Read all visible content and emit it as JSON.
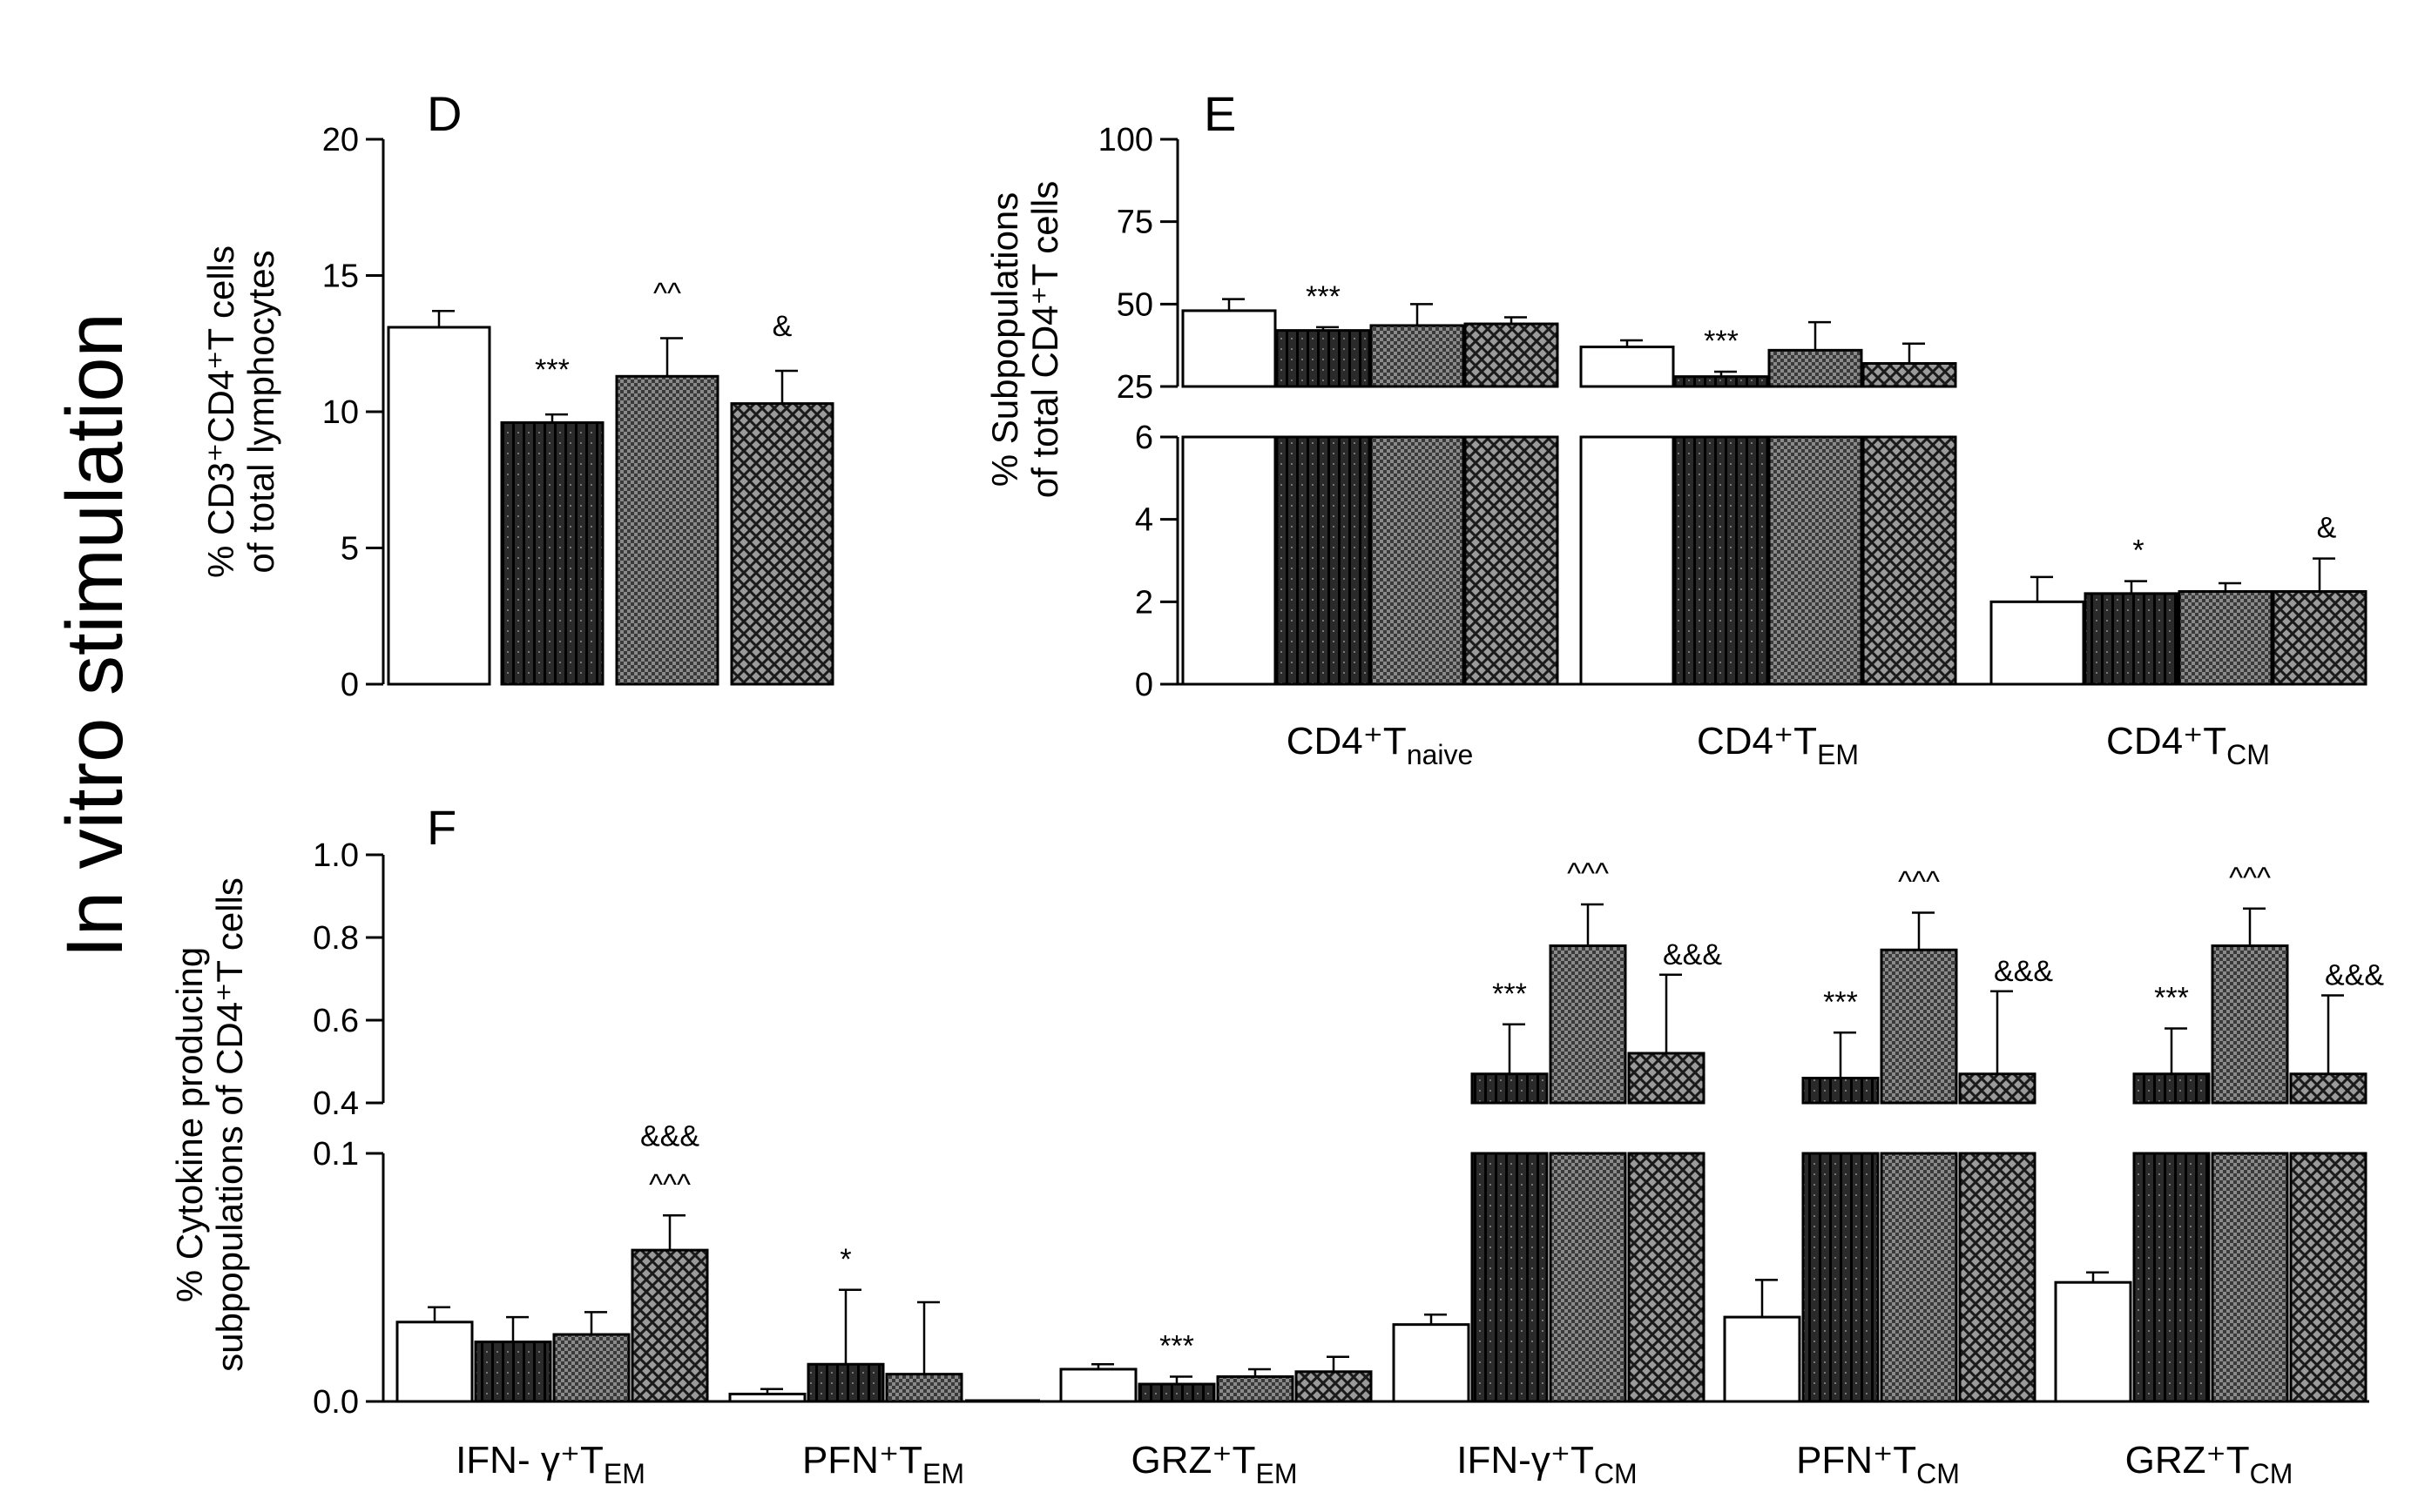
{
  "side_title": "In vitro stimulation",
  "chart_data": [
    {
      "id": "D",
      "type": "bar",
      "panel_label": "D",
      "ylabel_lines": [
        "% CD3⁺CD4⁺T cells",
        "of total lymphocytes"
      ],
      "ylim": [
        0,
        20
      ],
      "yticks": [
        "0",
        "5",
        "10",
        "15",
        "20"
      ],
      "groups": [
        ""
      ],
      "bars": [
        {
          "value": 13.1,
          "err": 0.6,
          "pattern": "white",
          "sig": ""
        },
        {
          "value": 9.6,
          "err": 0.3,
          "pattern": "dark",
          "sig": "***"
        },
        {
          "value": 11.3,
          "err": 1.4,
          "pattern": "fine",
          "sig": "^^"
        },
        {
          "value": 10.3,
          "err": 1.2,
          "pattern": "cross",
          "sig": "&"
        }
      ]
    },
    {
      "id": "E",
      "type": "bar",
      "panel_label": "E",
      "ylabel_lines": [
        "% Subpopulations",
        "of total CD4⁺T cells"
      ],
      "axis_break": true,
      "lower_range": [
        0,
        6
      ],
      "upper_range": [
        25,
        100
      ],
      "lower_ticks": [
        "0",
        "2",
        "4",
        "6"
      ],
      "upper_ticks": [
        "25",
        "50",
        "75",
        "100"
      ],
      "categories": [
        {
          "base": "CD4⁺T",
          "sub": "naive"
        },
        {
          "base": "CD4⁺T",
          "sub": "EM"
        },
        {
          "base": "CD4⁺T",
          "sub": "CM"
        }
      ],
      "series": [
        {
          "name": "group-1",
          "pattern": "white",
          "values": [
            48,
            37,
            2.0
          ],
          "errors": [
            3.5,
            2,
            0.6
          ]
        },
        {
          "name": "group-2",
          "pattern": "dark",
          "values": [
            42,
            28,
            2.2
          ],
          "errors": [
            1,
            1.5,
            0.3
          ]
        },
        {
          "name": "group-3",
          "pattern": "fine",
          "values": [
            43.5,
            36,
            2.25
          ],
          "errors": [
            6.5,
            8.5,
            0.2
          ]
        },
        {
          "name": "group-4",
          "pattern": "cross",
          "values": [
            44,
            32,
            2.25
          ],
          "errors": [
            2,
            6,
            0.8
          ]
        }
      ],
      "significance": [
        {
          "category": 0,
          "series": 1,
          "text": "***"
        },
        {
          "category": 1,
          "series": 1,
          "text": "***"
        },
        {
          "category": 2,
          "series": 1,
          "text": "*"
        },
        {
          "category": 2,
          "series": 3,
          "text": "&"
        }
      ]
    },
    {
      "id": "F",
      "type": "bar",
      "panel_label": "F",
      "ylabel_lines": [
        "% Cytokine producing",
        "subpopulations of CD4⁺T cells"
      ],
      "axis_break": true,
      "lower_range": [
        0,
        0.1
      ],
      "upper_range": [
        0.4,
        1.0
      ],
      "lower_ticks": [
        "0.0",
        "0.1"
      ],
      "upper_ticks": [
        "0.4",
        "0.6",
        "0.8",
        "1.0"
      ],
      "categories": [
        {
          "base": "IFN- γ⁺T",
          "sub": "EM"
        },
        {
          "base": "PFN⁺T",
          "sub": "EM"
        },
        {
          "base": "GRZ⁺T",
          "sub": "EM"
        },
        {
          "base": "IFN-γ⁺T",
          "sub": "CM"
        },
        {
          "base": "PFN⁺T",
          "sub": "CM"
        },
        {
          "base": "GRZ⁺T",
          "sub": "CM"
        }
      ],
      "series": [
        {
          "name": "group-1",
          "pattern": "white",
          "values": [
            0.032,
            0.003,
            0.013,
            0.031,
            0.034,
            0.048
          ],
          "errors": [
            0.006,
            0.002,
            0.002,
            0.004,
            0.015,
            0.004
          ]
        },
        {
          "name": "group-2",
          "pattern": "dark",
          "values": [
            0.024,
            0.015,
            0.007,
            0.47,
            0.46,
            0.47
          ],
          "errors": [
            0.01,
            0.03,
            0.003,
            0.12,
            0.11,
            0.11
          ]
        },
        {
          "name": "group-3",
          "pattern": "fine",
          "values": [
            0.027,
            0.011,
            0.01,
            0.78,
            0.77,
            0.78
          ],
          "errors": [
            0.009,
            0.029,
            0.003,
            0.1,
            0.09,
            0.09
          ]
        },
        {
          "name": "group-4",
          "pattern": "cross",
          "values": [
            0.061,
            0.0,
            0.012,
            0.52,
            0.47,
            0.47
          ],
          "errors": [
            0.014,
            0.0,
            0.006,
            0.19,
            0.2,
            0.19
          ]
        }
      ],
      "significance": [
        {
          "category": 0,
          "series": 3,
          "text": "^^^",
          "row": 0
        },
        {
          "category": 0,
          "series": 3,
          "text": "&&&",
          "row": 1
        },
        {
          "category": 1,
          "series": 1,
          "text": "*",
          "row": 0
        },
        {
          "category": 2,
          "series": 1,
          "text": "***",
          "row": 0
        },
        {
          "category": 3,
          "series": 1,
          "text": "***",
          "row": 0
        },
        {
          "category": 3,
          "series": 2,
          "text": "^^^",
          "row": 0
        },
        {
          "category": 3,
          "series": 3,
          "text": "&&&",
          "row": 0
        },
        {
          "category": 4,
          "series": 1,
          "text": "***",
          "row": 0
        },
        {
          "category": 4,
          "series": 2,
          "text": "^^^",
          "row": 0
        },
        {
          "category": 4,
          "series": 3,
          "text": "&&&",
          "row": 0
        },
        {
          "category": 5,
          "series": 1,
          "text": "***",
          "row": 0
        },
        {
          "category": 5,
          "series": 2,
          "text": "^^^",
          "row": 0
        },
        {
          "category": 5,
          "series": 3,
          "text": "&&&",
          "row": 0
        }
      ]
    }
  ]
}
